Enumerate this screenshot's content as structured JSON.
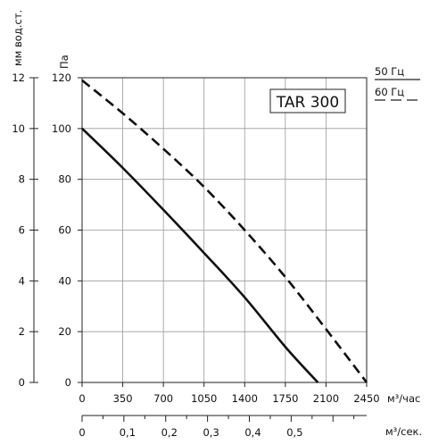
{
  "chart_data": {
    "type": "line",
    "model_label": "TAR 300",
    "left_axis": {
      "label": "мм вод.ст.",
      "ticks": [
        0,
        2,
        4,
        6,
        8,
        10,
        12
      ]
    },
    "main_axis": {
      "label": "Па",
      "ticks": [
        0,
        20,
        40,
        60,
        80,
        100,
        120
      ],
      "ylim": [
        0,
        120
      ]
    },
    "x_axis": {
      "label": "м³/час",
      "ticks": [
        0,
        350,
        700,
        1050,
        1400,
        1750,
        2100,
        2450
      ],
      "xlim": [
        0,
        2450
      ]
    },
    "x_axis_secondary": {
      "label": "м³/сек.",
      "ticks": [
        "0",
        "0,1",
        "0,2",
        "0,3",
        "0,4",
        "0,5"
      ],
      "values": [
        0,
        0.1,
        0.2,
        0.3,
        0.4,
        0.5
      ]
    },
    "series": [
      {
        "name": "50 Гц",
        "style": "solid",
        "x": [
          0,
          350,
          700,
          1050,
          1400,
          1750,
          2030
        ],
        "y": [
          100,
          84.5,
          68,
          51,
          33.5,
          14,
          0
        ]
      },
      {
        "name": "60 Гц",
        "style": "dashed",
        "x": [
          0,
          350,
          700,
          1050,
          1400,
          1750,
          2100,
          2450
        ],
        "y": [
          119,
          106,
          92,
          77,
          60,
          41.5,
          21,
          0
        ]
      }
    ],
    "grid": true
  }
}
